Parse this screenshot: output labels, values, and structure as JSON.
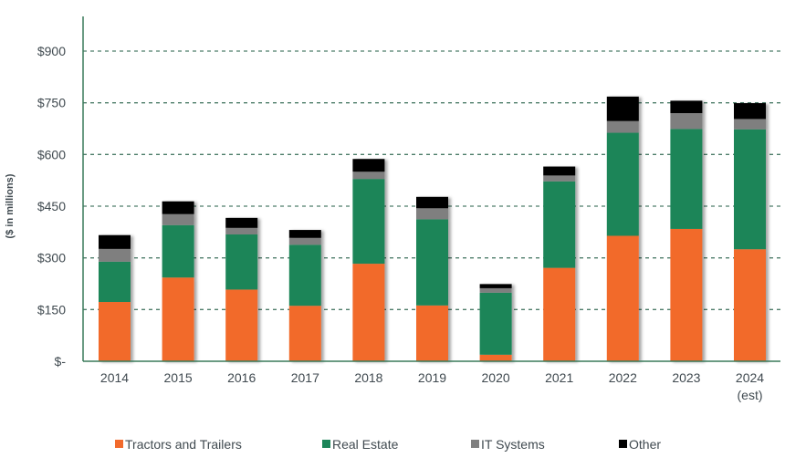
{
  "chart_data": {
    "type": "bar",
    "stacked": true,
    "title": "",
    "xlabel": "",
    "ylabel": "($ in millions)",
    "ylim": [
      0,
      900
    ],
    "yticks": [
      0,
      150,
      300,
      450,
      600,
      750,
      900
    ],
    "ytick_labels": [
      "$-",
      "$150",
      "$300",
      "$450",
      "$600",
      "$750",
      "$900"
    ],
    "grid": true,
    "legend_position": "bottom",
    "categories": [
      "2014",
      "2015",
      "2016",
      "2017",
      "2018",
      "2019",
      "2020",
      "2021",
      "2022",
      "2023",
      "2024"
    ],
    "category_sublabels": [
      "",
      "",
      "",
      "",
      "",
      "",
      "",
      "",
      "",
      "",
      "(est)"
    ],
    "series": [
      {
        "name": "Tractors and Trailers",
        "color": "#F26A2C",
        "values": [
          172,
          243,
          208,
          161,
          283,
          162,
          19,
          271,
          364,
          384,
          325
        ]
      },
      {
        "name": "Real Estate",
        "color": "#1C8559",
        "values": [
          117,
          152,
          160,
          177,
          246,
          250,
          180,
          251,
          299,
          290,
          348
        ]
      },
      {
        "name": "IT Systems",
        "color": "#7F7F7F",
        "values": [
          37,
          32,
          19,
          20,
          21,
          32,
          13,
          17,
          34,
          46,
          30
        ]
      },
      {
        "name": "Other",
        "color": "#000000",
        "values": [
          40,
          37,
          29,
          23,
          37,
          33,
          12,
          26,
          71,
          36,
          46
        ]
      }
    ]
  }
}
